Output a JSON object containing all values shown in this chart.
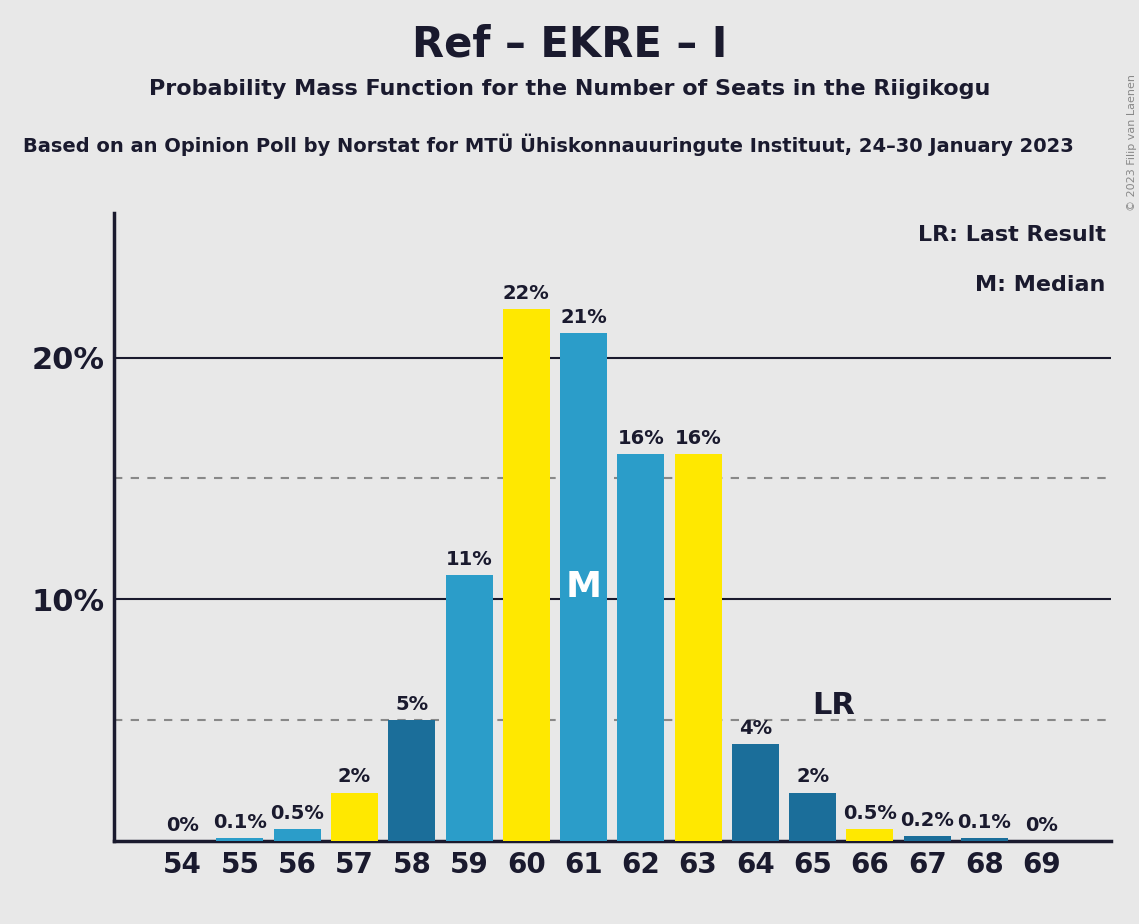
{
  "title": "Ref – EKRE – I",
  "subtitle": "Probability Mass Function for the Number of Seats in the Riigikogu",
  "source_line": "Based on an Opinion Poll by Norstat for MTÜ Ühiskonnauuringute Instituut, 24–30 January 2023",
  "copyright": "© 2023 Filip van Laenen",
  "categories": [
    54,
    55,
    56,
    57,
    58,
    59,
    60,
    61,
    62,
    63,
    64,
    65,
    66,
    67,
    68,
    69
  ],
  "values": [
    0.0,
    0.1,
    0.5,
    2.0,
    5.0,
    11.0,
    22.0,
    21.0,
    16.0,
    16.0,
    4.0,
    2.0,
    0.5,
    0.2,
    0.1,
    0.0
  ],
  "yellow_indices": [
    3,
    6,
    9,
    12
  ],
  "median_index": 7,
  "lr_index": 10,
  "bar_color_blue": "#2B9DC9",
  "bar_color_blue_dark": "#1B6E9A",
  "bar_color_yellow": "#FFE800",
  "label_color_dark": "#1A1A2E",
  "background_color": "#E8E8E8",
  "ylabel_ticks": [
    10,
    20
  ],
  "dotted_lines": [
    5.0,
    15.0
  ],
  "solid_lines": [
    10.0,
    20.0
  ],
  "ylim": [
    0,
    26
  ],
  "legend_lr": "LR: Last Result",
  "legend_m": "M: Median",
  "title_fontsize": 30,
  "subtitle_fontsize": 16,
  "source_fontsize": 14,
  "ytick_fontsize": 22,
  "xtick_fontsize": 20,
  "bar_label_fontsize": 14,
  "legend_fontsize": 16
}
